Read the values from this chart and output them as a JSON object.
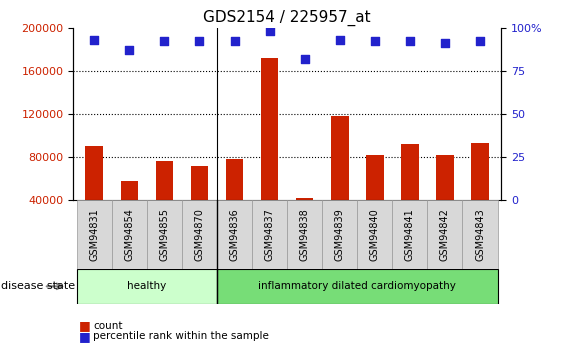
{
  "title": "GDS2154 / 225957_at",
  "samples": [
    "GSM94831",
    "GSM94854",
    "GSM94855",
    "GSM94870",
    "GSM94836",
    "GSM94837",
    "GSM94838",
    "GSM94839",
    "GSM94840",
    "GSM94841",
    "GSM94842",
    "GSM94843"
  ],
  "counts": [
    90000,
    58000,
    76000,
    72000,
    78000,
    172000,
    42000,
    118000,
    82000,
    92000,
    82000,
    93000
  ],
  "percentile_ranks": [
    93,
    87,
    92,
    92,
    92,
    98,
    82,
    93,
    92,
    92,
    91,
    92
  ],
  "bar_color": "#cc2200",
  "dot_color": "#2222cc",
  "ylim_left": [
    40000,
    200000
  ],
  "ylim_right": [
    0,
    100
  ],
  "yticks_left": [
    40000,
    80000,
    120000,
    160000,
    200000
  ],
  "yticks_right": [
    0,
    25,
    50,
    75,
    100
  ],
  "yticklabels_right": [
    "0",
    "25",
    "50",
    "75",
    "100%"
  ],
  "groups": [
    {
      "label": "healthy",
      "start": 0,
      "end": 4,
      "color": "#ccffcc"
    },
    {
      "label": "inflammatory dilated cardiomyopathy",
      "start": 4,
      "end": 12,
      "color": "#77dd77"
    }
  ],
  "disease_state_label": "disease state",
  "legend_items": [
    {
      "label": "count",
      "color": "#cc2200"
    },
    {
      "label": "percentile rank within the sample",
      "color": "#2222cc"
    }
  ],
  "grid_color": "black",
  "bg_color": "#ffffff",
  "bar_width": 0.5,
  "dot_size": 40,
  "tick_label_fontsize": 7,
  "title_fontsize": 11,
  "left_tick_color": "#cc2200",
  "right_tick_color": "#2222cc",
  "sample_box_color": "#d8d8d8",
  "sample_box_edge": "#999999"
}
